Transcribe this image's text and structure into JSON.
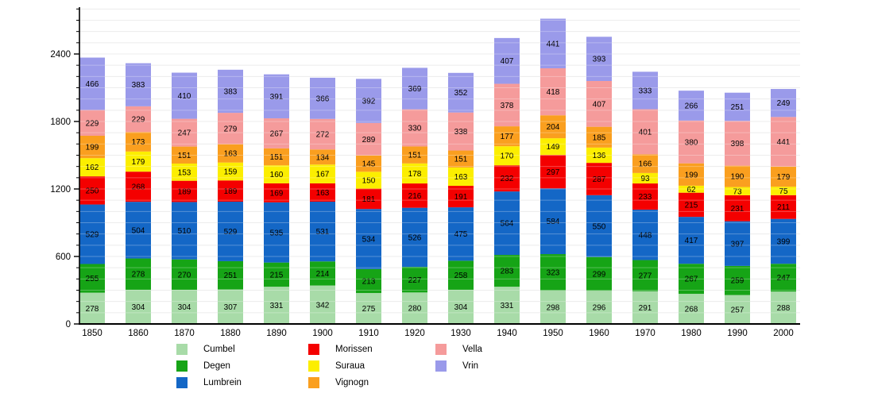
{
  "chart_data": {
    "type": "bar",
    "stacked": true,
    "title": "",
    "xlabel": "",
    "ylabel": "",
    "categories": [
      "1850",
      "1860",
      "1870",
      "1880",
      "1890",
      "1900",
      "1910",
      "1920",
      "1930",
      "1940",
      "1950",
      "1960",
      "1970",
      "1980",
      "1990",
      "2000"
    ],
    "series": [
      {
        "name": "Cumbel",
        "color": "#a8dba8",
        "values": [
          278,
          304,
          304,
          307,
          331,
          342,
          275,
          280,
          304,
          331,
          298,
          296,
          291,
          268,
          257,
          288
        ]
      },
      {
        "name": "Degen",
        "color": "#16a416",
        "values": [
          255,
          278,
          270,
          251,
          215,
          214,
          213,
          227,
          258,
          283,
          323,
          299,
          277,
          267,
          259,
          247
        ]
      },
      {
        "name": "Lumbrein",
        "color": "#1467c6",
        "values": [
          529,
          504,
          510,
          529,
          535,
          531,
          534,
          526,
          475,
          564,
          584,
          550,
          448,
          417,
          397,
          399
        ]
      },
      {
        "name": "Morissen",
        "color": "#f40000",
        "values": [
          250,
          268,
          189,
          189,
          169,
          163,
          181,
          216,
          191,
          232,
          297,
          287,
          233,
          215,
          231,
          211
        ]
      },
      {
        "name": "Suraua",
        "color": "#fcee00",
        "values": [
          162,
          179,
          153,
          159,
          160,
          167,
          150,
          178,
          163,
          170,
          149,
          136,
          93,
          62,
          73,
          75
        ]
      },
      {
        "name": "Vignogn",
        "color": "#fa9f1f",
        "values": [
          199,
          173,
          151,
          163,
          151,
          134,
          145,
          151,
          151,
          177,
          204,
          185,
          166,
          199,
          190,
          179
        ]
      },
      {
        "name": "Vella",
        "color": "#f59b9b",
        "values": [
          229,
          229,
          247,
          279,
          267,
          272,
          289,
          330,
          338,
          378,
          418,
          407,
          401,
          380,
          398,
          441
        ]
      },
      {
        "name": "Vrin",
        "color": "#9a9aea",
        "values": [
          466,
          383,
          410,
          383,
          391,
          366,
          392,
          369,
          352,
          407,
          441,
          393,
          333,
          266,
          251,
          249
        ]
      }
    ],
    "y_major_ticks": [
      0,
      600,
      1200,
      1800,
      2400
    ],
    "ylim": [
      0,
      2810
    ],
    "minor_grid_step": 100,
    "grid": true,
    "legend_position": "bottom",
    "legend_items_per_column": 3,
    "axis_color": "#000000",
    "gridline_color": "#e6e6e6",
    "bar_label_color": "#000000"
  }
}
